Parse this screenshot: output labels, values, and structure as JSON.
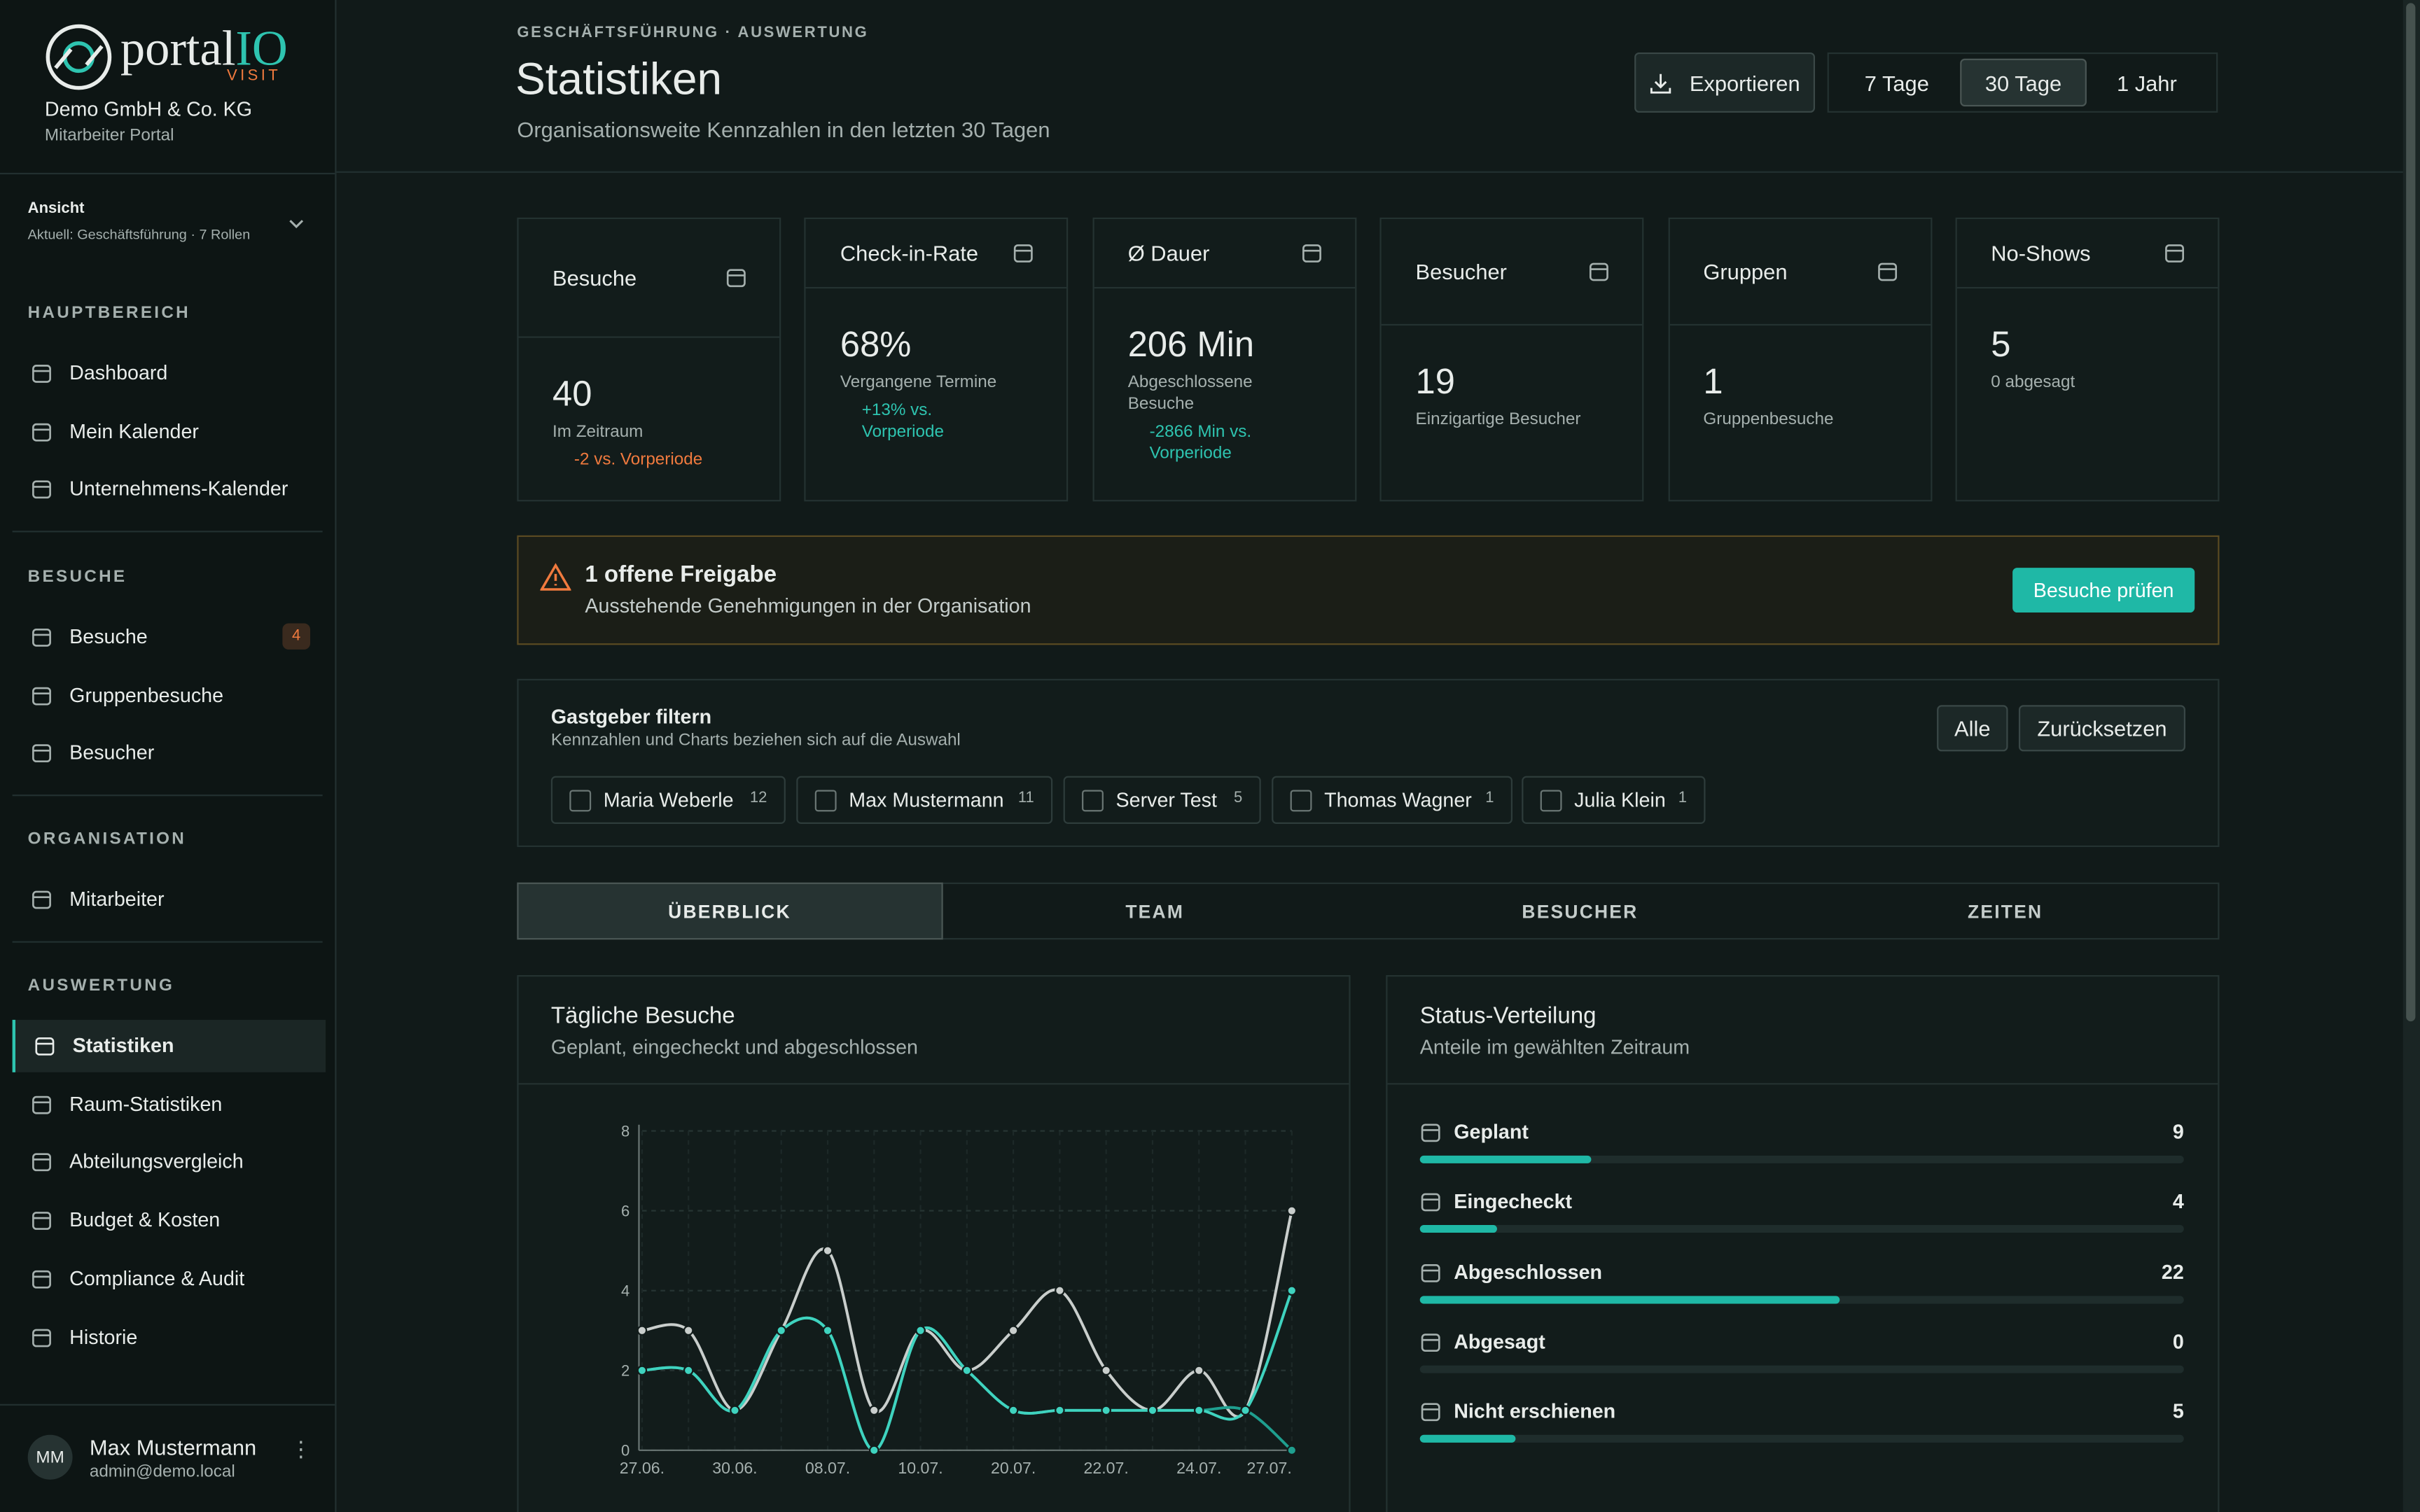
{
  "sidebar": {
    "brand": "portal",
    "brand2": "IO",
    "brand_sub": "VISIT",
    "company": "Demo GmbH & Co. KG",
    "portal": "Mitarbeiter Portal",
    "view_label": "Ansicht",
    "view_value": "Aktuell: Geschäftsführung · 7 Rollen",
    "sections": [
      {
        "title": "HAUPTBEREICH",
        "items": [
          {
            "label": "Dashboard"
          },
          {
            "label": "Mein Kalender"
          },
          {
            "label": "Unternehmens-Kalender"
          }
        ]
      },
      {
        "title": "BESUCHE",
        "items": [
          {
            "label": "Besuche",
            "badge": "4"
          },
          {
            "label": "Gruppenbesuche"
          },
          {
            "label": "Besucher"
          }
        ]
      },
      {
        "title": "ORGANISATION",
        "items": [
          {
            "label": "Mitarbeiter"
          }
        ]
      },
      {
        "title": "AUSWERTUNG",
        "items": [
          {
            "label": "Statistiken",
            "active": true
          },
          {
            "label": "Raum-Statistiken"
          },
          {
            "label": "Abteilungsvergleich"
          },
          {
            "label": "Budget & Kosten"
          },
          {
            "label": "Compliance & Audit"
          },
          {
            "label": "Historie"
          }
        ]
      }
    ],
    "user": {
      "initials": "MM",
      "name": "Max Mustermann",
      "email": "admin@demo.local"
    }
  },
  "header": {
    "eyebrow": "GESCHÄFTSFÜHRUNG · AUSWERTUNG",
    "title": "Statistiken",
    "subtitle": "Organisationsweite Kennzahlen in den letzten 30 Tagen",
    "export": "Exportieren",
    "ranges": [
      "7 Tage",
      "30 Tage",
      "1 Jahr"
    ],
    "active_range": 1
  },
  "kpis": [
    {
      "label": "Besuche",
      "value": "40",
      "note": "Im Zeitraum",
      "trend": "-2 vs. Vorperiode",
      "trend_color": "#f07a3e"
    },
    {
      "label": "Check-in-Rate",
      "value": "68%",
      "note": "Vergangene Termine",
      "trend": "+13% vs. Vorperiode",
      "trend_color": "#2ec4b0"
    },
    {
      "label": "Ø Dauer",
      "value": "206 Min",
      "note": "Abgeschlossene Besuche",
      "trend": "-2866 Min vs. Vorperiode",
      "trend_color": "#2ec4b0"
    },
    {
      "label": "Besucher",
      "value": "19",
      "note": "Einzigartige Besucher"
    },
    {
      "label": "Gruppen",
      "value": "1",
      "note": "Gruppenbesuche"
    },
    {
      "label": "No-Shows",
      "value": "5",
      "note": "0 abgesagt"
    }
  ],
  "alert": {
    "title": "1 offene Freigabe",
    "text": "Ausstehende Genehmigungen in der Organisation",
    "button": "Besuche prüfen"
  },
  "filter": {
    "title": "Gastgeber filtern",
    "text": "Kennzahlen und Charts beziehen sich auf die Auswahl",
    "all": "Alle",
    "reset": "Zurücksetzen",
    "hosts": [
      {
        "name": "Maria Weberle",
        "count": "12"
      },
      {
        "name": "Max Mustermann",
        "count": "11"
      },
      {
        "name": "Server Test",
        "count": "5"
      },
      {
        "name": "Thomas Wagner",
        "count": "1"
      },
      {
        "name": "Julia Klein",
        "count": "1"
      }
    ]
  },
  "tabs": [
    "ÜBERBLICK",
    "TEAM",
    "BESUCHER",
    "ZEITEN"
  ],
  "chart_data": [
    {
      "type": "line",
      "title": "Tägliche Besuche",
      "subtitle": "Geplant, eingecheckt und abgeschlossen",
      "categories": [
        "27.06.",
        null,
        "30.06.",
        null,
        "08.07.",
        null,
        "10.07.",
        null,
        "20.07.",
        null,
        "22.07.",
        null,
        "24.07.",
        null,
        "27.07."
      ],
      "series": [
        {
          "color": "#c9cecc",
          "values": [
            3,
            3,
            1,
            3,
            5,
            1,
            3,
            2,
            3,
            4,
            2,
            1,
            2,
            1,
            6
          ]
        },
        {
          "color": "#1f9f8f",
          "values": [
            2,
            2,
            1,
            3,
            3,
            0,
            3,
            2,
            1,
            1,
            1,
            1,
            1,
            1,
            0
          ]
        },
        {
          "color": "#3fd3bf",
          "values": [
            2,
            2,
            1,
            3,
            3,
            0,
            3,
            2,
            1,
            1,
            1,
            1,
            1,
            1,
            4
          ]
        }
      ],
      "ylim": [
        0,
        8
      ],
      "yticks": [
        0,
        2,
        4,
        6,
        8
      ],
      "grid": true
    },
    {
      "type": "bar",
      "title": "Status-Verteilung",
      "subtitle": "Anteile im gewählten Zeitraum",
      "categories": [
        "Geplant",
        "Eingecheckt",
        "Abgeschlossen",
        "Abgesagt",
        "Nicht erschienen"
      ],
      "values": [
        9,
        4,
        22,
        0,
        5
      ],
      "color": "#1fb8a6"
    }
  ]
}
